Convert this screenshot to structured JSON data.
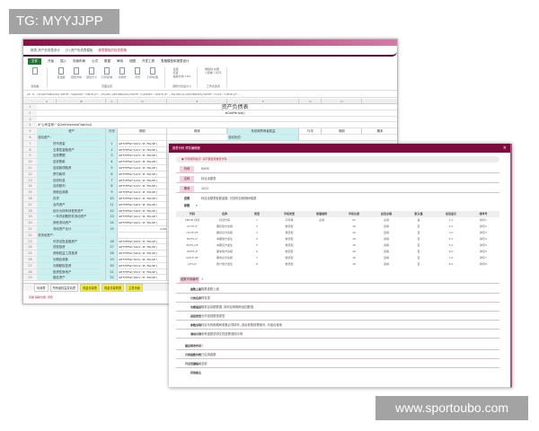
{
  "watermark_top": "TG: MYYJJPP",
  "watermark_bottom": "www.sportoubo.com",
  "excel": {
    "doc_tabs": [
      "报表-资产负债表设计",
      "[3] 资产负债表模板",
      "报表模板的检查表格"
    ],
    "ribbon_tabs": [
      "文件",
      "开始",
      "插入",
      "页面布局",
      "公式",
      "数据",
      "审阅",
      "视图",
      "开发工具",
      "表格模型和报表设计"
    ],
    "ribbon_groups": [
      "剪贴板",
      "页面设置",
      "调整为合适大小",
      "工作表选项"
    ],
    "ribbon_buttons": [
      "页边距",
      "纸张方向",
      "纸张大小",
      "打印区域",
      "分隔符",
      "背景",
      "打印标题",
      "宽度",
      "高度",
      "缩放比例",
      "网格线",
      "标题",
      "查看",
      "打印"
    ],
    "zoom": "79%",
    "cell_ref": "A5",
    "formula": "=IF(GETOBDATA(\"KMYE\",\"GDJSMX\",\"QMYE-JF\",,,,FALSE)-GETOBDATA(\"KMYE\",\"GDJSMX\",\"QMYE-JF\",,,,FALSE)=0,GETOBDATA(\"KMYE\",\"1221\",\"QMYE-JF\"...",
    "columns": [
      "A",
      "B",
      "C",
      "D",
      "E",
      "F",
      "G",
      "H"
    ],
    "title": "资产负债表",
    "period": "#GetPeriod()",
    "company": "#\"公司名称:\" &GetSelectedOrgInfo()",
    "headers": [
      "资产",
      "行次",
      "期初",
      "期末",
      "负债和所有者权益",
      "行次",
      "期初",
      "期末"
    ],
    "rows": [
      {
        "label": "流动资产:",
        "line": "",
        "f": ""
      },
      {
        "label": "货币资金",
        "line": "1",
        "f": "GETYEFW('1001','#','FALSE')"
      },
      {
        "label": "交易性金融资产",
        "line": "2",
        "f": "GETYEFW('1101','#','FALSE')"
      },
      {
        "label": "应收票据",
        "line": "3",
        "f": "GETYEFW('1121','#','FALSE')"
      },
      {
        "label": "应收账款",
        "line": "4",
        "f": "GETYEFW('1122','#','FALSE')"
      },
      {
        "label": "应收款项融资",
        "line": "5",
        "f": "GETYEFW('1124','#','FALSE')"
      },
      {
        "label": "预付款项",
        "line": "6",
        "f": "GETYEFW('1123','#','FALSE')"
      },
      {
        "label": "应收利息",
        "line": "7",
        "f": "GETYEFW('1132','#','FALSE')"
      },
      {
        "label": "应收股利",
        "line": "8",
        "f": "GETYEFW('1131','#','FALSE')"
      },
      {
        "label": "其他应收款",
        "line": "9",
        "f": "GETYEFW('1221','#','FALSE')"
      },
      {
        "label": "存货",
        "line": "10",
        "f": "GETYEFW('1401','#','FALSE')"
      },
      {
        "label": "合同资产",
        "line": "11",
        "f": "GETYEFW('1403','#','FALSE')"
      },
      {
        "label": "划分为持有待售的资产",
        "line": "12",
        "f": "GETYEFW('1405','#','FALSE')"
      },
      {
        "label": "一年内到期的非流动资产",
        "line": "13",
        "f": "GETYEFW('1411','#','FALSE')"
      },
      {
        "label": "其他流动资产",
        "line": "14",
        "f": "GETYEFW('1421','#','FALSE')"
      },
      {
        "label": "流动资产合计",
        "line": "15",
        "f": "A.00"
      },
      {
        "label": "非流动资产:",
        "line": "",
        "f": ""
      },
      {
        "label": "可供出售金融资产",
        "line": "16",
        "f": "GETYEFW('1503','#','FALSE')"
      },
      {
        "label": "债权投资",
        "line": "17",
        "f": "GETYEFW('1501','#','FALSE')"
      },
      {
        "label": "其他权益工具投资",
        "line": "18",
        "f": "GETYEFW('1504','#','FALSE')"
      },
      {
        "label": "长期应收款",
        "line": "19",
        "f": "GETYEFW('1531','#','FALSE')"
      },
      {
        "label": "长期股权投资",
        "line": "20",
        "f": "GETYEFW('1511','#','FALSE')"
      },
      {
        "label": "投资性房地产",
        "line": "21",
        "f": "GETYEFW('1521','#','FALSE')"
      },
      {
        "label": "固定资产",
        "line": "22",
        "f": "GETYEFW('1601','#','FALSE')"
      },
      {
        "label": "在建工程",
        "line": "23",
        "f": "GETYEFW('1604','#','FALSE')"
      }
    ],
    "right_header": "流动负债:",
    "sheet_tabs": [
      {
        "label": "利润表",
        "y": false
      },
      {
        "label": "所有者权益变动表",
        "y": false
      },
      {
        "label": "现金流量表",
        "y": true
      },
      {
        "label": "现金流量附表",
        "y": true
      },
      {
        "label": "主表页面",
        "y": true
      }
    ],
    "status": "就绪  辅助功能: 调查"
  },
  "dialog": {
    "title": "报表代码 预览编辑器",
    "close": "×",
    "message": "● 代码规则提示: 请不要使用重复代码",
    "fields": [
      {
        "label": "代码",
        "value": "KMYE"
      },
      {
        "label": "名称",
        "value": "科目余额表"
      },
      {
        "label": "期间",
        "value": "2022"
      }
    ],
    "desc_label": "说明",
    "desc_value": "科目余额表取数函数, 可按科目和期间取数",
    "param_label": "参数",
    "param_value": "▾",
    "table_headers": [
      "代码",
      "名称",
      "类型",
      "字段类型",
      "取值规则",
      "字段长度",
      "是否必填",
      "默认值",
      "是否显示",
      "排序号"
    ],
    "table_rows": [
      [
        "KMDM 科目",
        "科目代码",
        "1",
        "字符串",
        "必填",
        "20",
        "必填",
        "是",
        "1.0",
        "排序1"
      ],
      [
        "QCYE-JF",
        "期初借方余额",
        "2",
        "数值型",
        "",
        "18",
        "选填",
        "否",
        "2.0",
        "排序2"
      ],
      [
        "QCYE-DF",
        "期初贷方余额",
        "3",
        "数值型",
        "",
        "18",
        "选填",
        "否",
        "3.0",
        "排序3"
      ],
      [
        "BQFS-JF",
        "本期借方发生",
        "4",
        "数值型",
        "",
        "18",
        "选填",
        "否",
        "4.0",
        "排序4"
      ],
      [
        "BQFS-DF",
        "本期贷方发生",
        "5",
        "数值型",
        "",
        "18",
        "选填",
        "否",
        "5.0",
        "排序5"
      ],
      [
        "QMYE-JF",
        "期末借方余额",
        "6",
        "数值型",
        "",
        "18",
        "选填",
        "否",
        "6.0",
        "排序6"
      ],
      [
        "QMYE-DF",
        "期末贷方余额",
        "7",
        "数值型",
        "",
        "18",
        "选填",
        "否",
        "7.0",
        "排序7"
      ],
      [
        "LJFS-JF",
        "累计借方发生",
        "8",
        "数值型",
        "",
        "18",
        "选填",
        "否",
        "8.0",
        "排序8"
      ]
    ],
    "section_label": "函数代码编号",
    "section_value": "1",
    "form": [
      {
        "label": "函数上级",
        "value": "取数函数上级"
      },
      {
        "label": "分类名称",
        "value": "财务类"
      },
      {
        "label": "功能描述",
        "value": "取科目余额数据, 按科目和期间返回数值"
      },
      {
        "label": "返回类型",
        "value": "允许返回数值类型"
      },
      {
        "label": "参数说明",
        "value": "科目代码和期间参数必须填写, 其余参数按需填写, 可组合使用"
      },
      {
        "label": "调用示例",
        "value": "参考函数说明文档查看调用示例"
      },
      {
        "label": "最后修改时间",
        "value": "1"
      },
      {
        "label": "分类函数列表",
        "value": "已启用函数"
      },
      {
        "label": "可见范围格式",
        "value": "全部"
      },
      {
        "label": "其他备注",
        "value": ""
      }
    ]
  }
}
